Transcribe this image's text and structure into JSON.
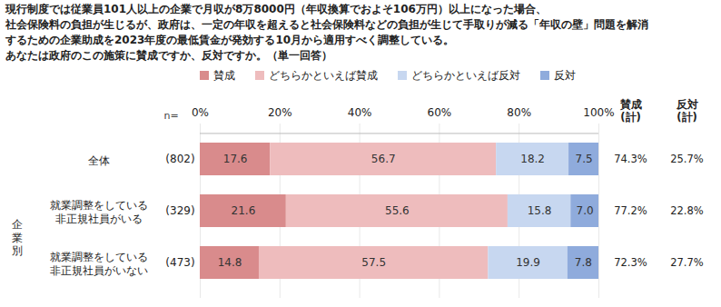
{
  "chart_data": {
    "type": "bar",
    "orientation": "horizontal",
    "stacked": true,
    "data_labels": true,
    "grid": true,
    "title": "現行制度では従業員101人以上の企業で月収が8万8000円（年収換算でおよそ106万円）以上になった場合、\n社会保険料の負担が生じるが、政府は、一定の年収を超えると社会保険料などの負担が生じて手取りが減る「年収の壁」問題を解消\nするための企業助成を2023年度の最低賃金が発効する10月から適用すべく調整している。\nあなたは政府のこの施策に賛成ですか、反対ですか。（単一回答）",
    "categories": [
      "全体",
      "就業調整をしている\n非正規社員がいる",
      "就業調整をしている\n非正規社員がいない"
    ],
    "group_label": "企業別",
    "group_rows": [
      1,
      2
    ],
    "n_label": "n=",
    "n": [
      802,
      329,
      473
    ],
    "n_labels": [
      "(802)",
      "(329)",
      "(473)"
    ],
    "xlim": [
      0,
      100
    ],
    "xticks": [
      {
        "value": 0,
        "label": "0%"
      },
      {
        "value": 20,
        "label": "20%"
      },
      {
        "value": 40,
        "label": "40%"
      },
      {
        "value": 60,
        "label": "60%"
      },
      {
        "value": 80,
        "label": "80%"
      },
      {
        "value": 100,
        "label": "100%"
      }
    ],
    "series": [
      {
        "name": "賛成",
        "color": "#d98b8c",
        "values": [
          17.6,
          21.6,
          14.8
        ],
        "value_labels": [
          "17.6",
          "21.6",
          "14.8"
        ]
      },
      {
        "name": "どちらかといえば賛成",
        "color": "#eebcbd",
        "values": [
          56.7,
          55.6,
          57.5
        ],
        "value_labels": [
          "56.7",
          "55.6",
          "57.5"
        ]
      },
      {
        "name": "どちらかといえば反対",
        "color": "#c7d7f0",
        "values": [
          18.2,
          15.8,
          19.9
        ],
        "value_labels": [
          "18.2",
          "15.8",
          "19.9"
        ]
      },
      {
        "name": "反対",
        "color": "#8fabdc",
        "values": [
          7.5,
          7.0,
          7.8
        ],
        "value_labels": [
          "7.5",
          "7.0",
          "7.8"
        ]
      }
    ],
    "summary": [
      {
        "name": "賛成\n(計)",
        "values": [
          74.3,
          77.2,
          72.3
        ],
        "value_labels": [
          "74.3%",
          "77.2%",
          "72.3%"
        ]
      },
      {
        "name": "反対\n(計)",
        "values": [
          25.7,
          22.8,
          27.7
        ],
        "value_labels": [
          "25.7%",
          "22.8%",
          "27.7%"
        ]
      }
    ]
  }
}
